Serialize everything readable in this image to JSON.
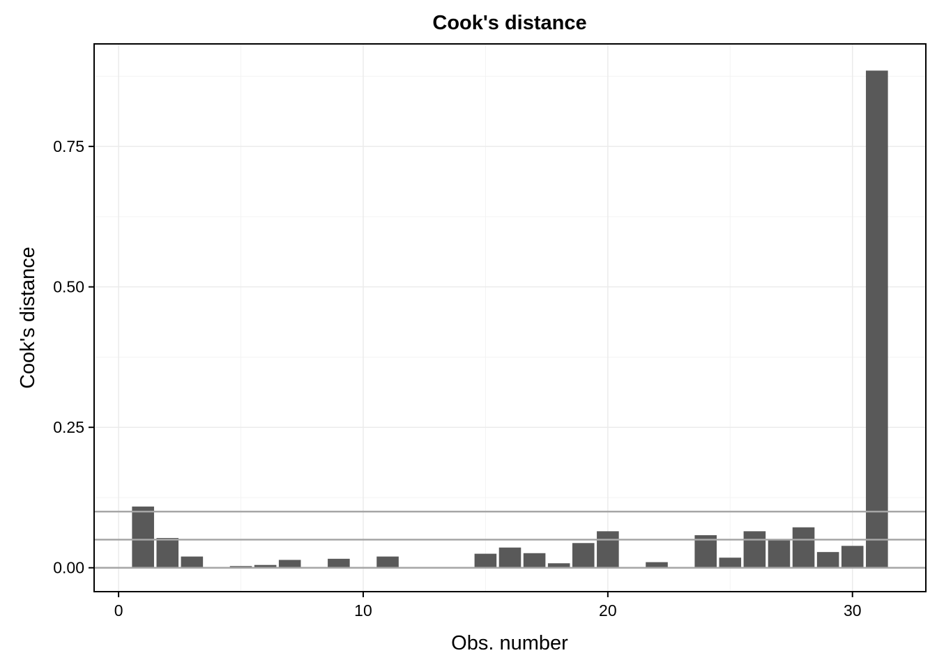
{
  "chart_data": {
    "type": "bar",
    "title": "Cook's distance",
    "xlabel": "Obs. number",
    "ylabel": "Cook's distance",
    "xlim": [
      -1,
      33
    ],
    "ylim": [
      -0.0425,
      0.9325
    ],
    "x_ticks": [
      0,
      10,
      20,
      30
    ],
    "x_tick_labels": [
      "0",
      "10",
      "20",
      "30"
    ],
    "y_ticks": [
      0,
      0.25,
      0.5,
      0.75
    ],
    "y_tick_labels": [
      "0.00",
      "0.25",
      "0.50",
      "0.75"
    ],
    "grid": true,
    "bar_color": "#595959",
    "reference_lines": [
      0,
      0.05,
      0.1
    ],
    "reference_line_color": "#a6a6a6",
    "x": [
      1,
      2,
      3,
      4,
      5,
      6,
      7,
      8,
      9,
      10,
      11,
      12,
      13,
      14,
      15,
      16,
      17,
      18,
      19,
      20,
      21,
      22,
      23,
      24,
      25,
      26,
      27,
      28,
      29,
      30,
      31
    ],
    "values": [
      0.109,
      0.053,
      0.02,
      0.0,
      0.003,
      0.005,
      0.014,
      0.0,
      0.016,
      0.0,
      0.02,
      0.0,
      0.0,
      0.0,
      0.025,
      0.036,
      0.026,
      0.008,
      0.044,
      0.065,
      0.0,
      0.01,
      0.0,
      0.058,
      0.018,
      0.065,
      0.05,
      0.072,
      0.028,
      0.039,
      0.885
    ]
  }
}
